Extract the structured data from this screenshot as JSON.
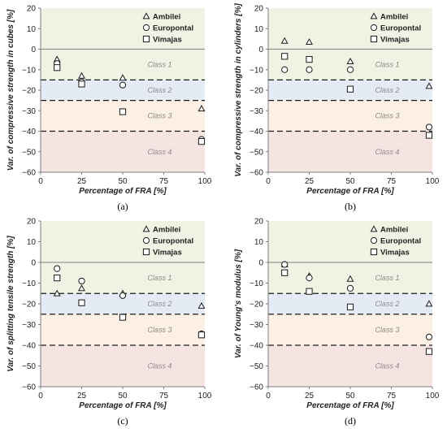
{
  "chart_data": [
    {
      "type": "scatter",
      "panel_label": "(a)",
      "xlabel": "Percentage of FRA [%]",
      "ylabel": "Var. of compressive strength in cubes [%]",
      "xlim": [
        0,
        100
      ],
      "ylim": [
        -60,
        20
      ],
      "xticks": [
        0,
        25,
        50,
        75,
        100
      ],
      "yticks": [
        20,
        10,
        0,
        -10,
        -20,
        -30,
        -40,
        -50,
        -60
      ],
      "legend_position": "top-right",
      "series": [
        {
          "name": "Ambilei",
          "marker": "triangle",
          "points": [
            [
              10,
              -5
            ],
            [
              25,
              -13
            ],
            [
              50,
              -14
            ],
            [
              98,
              -29
            ]
          ]
        },
        {
          "name": "Europontal",
          "marker": "circle",
          "points": [
            [
              10,
              -7
            ],
            [
              25,
              -16
            ],
            [
              50,
              -17.5
            ],
            [
              98,
              -44
            ]
          ]
        },
        {
          "name": "Vimajas",
          "marker": "square",
          "points": [
            [
              10,
              -9
            ],
            [
              25,
              -17
            ],
            [
              50,
              -30.5
            ],
            [
              98,
              -45
            ]
          ]
        }
      ]
    },
    {
      "type": "scatter",
      "panel_label": "(b)",
      "xlabel": "Percentage of FRA [%]",
      "ylabel": "Var. of compressive  strength in cylinders [%]",
      "xlim": [
        0,
        100
      ],
      "ylim": [
        -60,
        20
      ],
      "xticks": [
        0,
        25,
        50,
        75,
        100
      ],
      "yticks": [
        20,
        10,
        0,
        -10,
        -20,
        -30,
        -40,
        -50,
        -60
      ],
      "legend_position": "top-right",
      "series": [
        {
          "name": "Ambilei",
          "marker": "triangle",
          "points": [
            [
              10,
              4
            ],
            [
              25,
              3.5
            ],
            [
              50,
              -6
            ],
            [
              98,
              -18
            ]
          ]
        },
        {
          "name": "Europontal",
          "marker": "circle",
          "points": [
            [
              10,
              -10
            ],
            [
              25,
              -10
            ],
            [
              50,
              -10
            ],
            [
              98,
              -38
            ]
          ]
        },
        {
          "name": "Vimajas",
          "marker": "square",
          "points": [
            [
              10,
              -3.5
            ],
            [
              25,
              -5
            ],
            [
              50,
              -19.5
            ],
            [
              98,
              -42
            ]
          ]
        }
      ]
    },
    {
      "type": "scatter",
      "panel_label": "(c)",
      "xlabel": "Percentage of FRA [%]",
      "ylabel": "Var. of splitting tensile strength [%]",
      "xlim": [
        0,
        100
      ],
      "ylim": [
        -60,
        20
      ],
      "xticks": [
        0,
        25,
        50,
        75,
        100
      ],
      "yticks": [
        20,
        10,
        0,
        -10,
        -20,
        -30,
        -40,
        -50,
        -60
      ],
      "legend_position": "top-right",
      "series": [
        {
          "name": "Ambilei",
          "marker": "triangle",
          "points": [
            [
              10,
              -15
            ],
            [
              25,
              -12.5
            ],
            [
              50,
              -15
            ],
            [
              98,
              -21
            ]
          ]
        },
        {
          "name": "Europontal",
          "marker": "circle",
          "points": [
            [
              10,
              -3
            ],
            [
              25,
              -9
            ],
            [
              50,
              -16
            ],
            [
              98,
              -34.5
            ]
          ]
        },
        {
          "name": "Vimajas",
          "marker": "square",
          "points": [
            [
              10,
              -7.5
            ],
            [
              25,
              -19.5
            ],
            [
              50,
              -26.5
            ],
            [
              98,
              -35
            ]
          ]
        }
      ]
    },
    {
      "type": "scatter",
      "panel_label": "(d)",
      "xlabel": "Percentage of FRA [%]",
      "ylabel": "Var. of Young's modulus [%]",
      "xlim": [
        0,
        100
      ],
      "ylim": [
        -60,
        20
      ],
      "xticks": [
        0,
        25,
        50,
        75,
        100
      ],
      "yticks": [
        20,
        10,
        0,
        -10,
        -20,
        -30,
        -40,
        -50,
        -60
      ],
      "legend_position": "top-right",
      "series": [
        {
          "name": "Ambilei",
          "marker": "triangle",
          "points": [
            [
              10,
              -1
            ],
            [
              25,
              -6.5
            ],
            [
              50,
              -8
            ],
            [
              98,
              -20
            ]
          ]
        },
        {
          "name": "Europontal",
          "marker": "circle",
          "points": [
            [
              10,
              -1
            ],
            [
              25,
              -7.5
            ],
            [
              50,
              -12.5
            ],
            [
              98,
              -36
            ]
          ]
        },
        {
          "name": "Vimajas",
          "marker": "square",
          "points": [
            [
              10,
              -5
            ],
            [
              25,
              -14
            ],
            [
              50,
              -21.5
            ],
            [
              98,
              -43
            ]
          ]
        }
      ]
    }
  ],
  "bands": [
    {
      "label": "Class 1",
      "from": 0,
      "to": -15,
      "color": "#eef3e3"
    },
    {
      "label": "Class 2",
      "from": -15,
      "to": -25,
      "color": "#e5ebf4"
    },
    {
      "label": "Class 3",
      "from": -25,
      "to": -40,
      "color": "#fcefe3"
    },
    {
      "label": "Class 4",
      "from": -40,
      "to": -60,
      "color": "#f6e4e2"
    }
  ],
  "top_band": {
    "from": 20,
    "to": 0,
    "color": "#eef3e3"
  },
  "thresholds": [
    -15,
    -25,
    -40
  ],
  "colors": {
    "marker": "#1a1a1a",
    "axis": "#7f7f7f",
    "dash": "#1a1a1a"
  }
}
